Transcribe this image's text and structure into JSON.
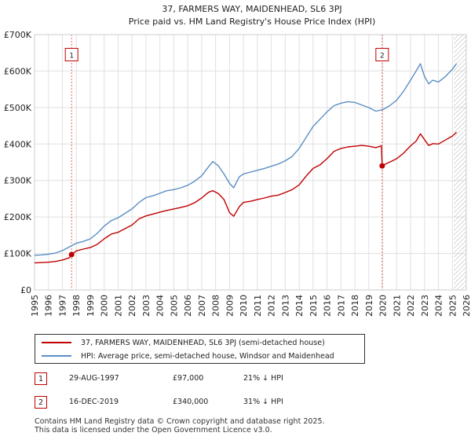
{
  "title_line1": "37, FARMERS WAY, MAIDENHEAD, SL6 3PJ",
  "title_line2": "Price paid vs. HM Land Registry's House Price Index (HPI)",
  "colors": {
    "property": "#c00000",
    "hpi": "#5b8ec4",
    "grid": "#e0e0e0",
    "marker_line": "#e06666"
  },
  "legend": {
    "property_label": "37, FARMERS WAY, MAIDENHEAD, SL6 3PJ (semi-detached house)",
    "hpi_label": "HPI: Average price, semi-detached house, Windsor and Maidenhead"
  },
  "annotations": [
    {
      "id": "1",
      "date": "29-AUG-1997",
      "price": "£97,000",
      "hpi_diff": "21% ↓ HPI"
    },
    {
      "id": "2",
      "date": "16-DEC-2019",
      "price": "£340,000",
      "hpi_diff": "31% ↓ HPI"
    }
  ],
  "footer": {
    "line1": "Contains HM Land Registry data © Crown copyright and database right 2025.",
    "line2": "This data is licensed under the Open Government Licence v3.0."
  },
  "chart_data": {
    "type": "line",
    "title": "37, FARMERS WAY, MAIDENHEAD, SL6 3PJ — Price paid vs. HM Land Registry's House Price Index (HPI)",
    "xlabel": "",
    "ylabel": "",
    "xlim": [
      1995,
      2026
    ],
    "ylim": [
      0,
      700000
    ],
    "y_ticks": [
      0,
      100000,
      200000,
      300000,
      400000,
      500000,
      600000,
      700000
    ],
    "y_tick_labels": [
      "£0",
      "£100K",
      "£200K",
      "£300K",
      "£400K",
      "£500K",
      "£600K",
      "£700K"
    ],
    "x_ticks": [
      1995,
      1996,
      1997,
      1998,
      1999,
      2000,
      2001,
      2002,
      2003,
      2004,
      2005,
      2006,
      2007,
      2008,
      2009,
      2010,
      2011,
      2012,
      2013,
      2014,
      2015,
      2016,
      2017,
      2018,
      2019,
      2020,
      2021,
      2022,
      2023,
      2024,
      2025,
      2026
    ],
    "x_tick_labels": [
      "1995",
      "1996",
      "1997",
      "1998",
      "1999",
      "2000",
      "2001",
      "2002",
      "2003",
      "2004",
      "2005",
      "2006",
      "2007",
      "2008",
      "2009",
      "2010",
      "2011",
      "2012",
      "2013",
      "2014",
      "2015",
      "2016",
      "2017",
      "2018",
      "2019",
      "2020",
      "2021",
      "2022",
      "2023",
      "2024",
      "2025",
      "2026"
    ],
    "future_hatch_start": 2025.1,
    "series": [
      {
        "name": "37, FARMERS WAY, MAIDENHEAD, SL6 3PJ (semi-detached house)",
        "color": "#c00000",
        "x": [
          1995.0,
          1995.5,
          1996.0,
          1996.5,
          1997.0,
          1997.5,
          1997.66,
          1998.0,
          1998.5,
          1999.0,
          1999.5,
          2000.0,
          2000.5,
          2001.0,
          2001.5,
          2002.0,
          2002.5,
          2003.0,
          2003.5,
          2004.0,
          2004.5,
          2005.0,
          2005.5,
          2006.0,
          2006.5,
          2007.0,
          2007.5,
          2007.8,
          2008.2,
          2008.6,
          2009.0,
          2009.3,
          2009.7,
          2010.0,
          2010.5,
          2011.0,
          2011.5,
          2012.0,
          2012.5,
          2013.0,
          2013.5,
          2014.0,
          2014.5,
          2015.0,
          2015.5,
          2016.0,
          2016.5,
          2017.0,
          2017.5,
          2018.0,
          2018.5,
          2019.0,
          2019.5,
          2019.9,
          2019.96,
          2020.3,
          2020.7,
          2021.0,
          2021.5,
          2022.0,
          2022.4,
          2022.7,
          2023.0,
          2023.3,
          2023.6,
          2024.0,
          2024.5,
          2025.0,
          2025.3
        ],
        "values": [
          74000,
          75000,
          76000,
          78000,
          82000,
          88000,
          97000,
          107000,
          112000,
          116000,
          125000,
          140000,
          153000,
          158000,
          168000,
          178000,
          195000,
          203000,
          208000,
          213000,
          218000,
          222000,
          226000,
          231000,
          239000,
          252000,
          268000,
          272000,
          264000,
          248000,
          212000,
          202000,
          228000,
          240000,
          243000,
          248000,
          252000,
          257000,
          260000,
          267000,
          275000,
          288000,
          312000,
          333000,
          343000,
          360000,
          380000,
          388000,
          392000,
          394000,
          396000,
          394000,
          390000,
          395000,
          340000,
          347000,
          354000,
          360000,
          375000,
          395000,
          408000,
          428000,
          412000,
          396000,
          401000,
          400000,
          411000,
          422000,
          432000
        ]
      },
      {
        "name": "HPI: Average price, semi-detached house, Windsor and Maidenhead",
        "color": "#5b8ec4",
        "x": [
          1995.0,
          1995.5,
          1996.0,
          1996.5,
          1997.0,
          1997.5,
          1998.0,
          1998.5,
          1999.0,
          1999.5,
          2000.0,
          2000.5,
          2001.0,
          2001.5,
          2002.0,
          2002.5,
          2003.0,
          2003.5,
          2004.0,
          2004.5,
          2005.0,
          2005.5,
          2006.0,
          2006.5,
          2007.0,
          2007.5,
          2007.8,
          2008.2,
          2008.6,
          2009.0,
          2009.3,
          2009.7,
          2010.0,
          2010.5,
          2011.0,
          2011.5,
          2012.0,
          2012.5,
          2013.0,
          2013.5,
          2014.0,
          2014.5,
          2015.0,
          2015.5,
          2016.0,
          2016.5,
          2017.0,
          2017.5,
          2018.0,
          2018.5,
          2019.0,
          2019.5,
          2020.0,
          2020.5,
          2021.0,
          2021.5,
          2022.0,
          2022.4,
          2022.7,
          2023.0,
          2023.3,
          2023.6,
          2024.0,
          2024.5,
          2025.0,
          2025.3
        ],
        "values": [
          95000,
          96000,
          98000,
          101000,
          108000,
          118000,
          128000,
          133000,
          140000,
          155000,
          175000,
          190000,
          198000,
          210000,
          222000,
          240000,
          253000,
          258000,
          265000,
          272000,
          275000,
          280000,
          287000,
          298000,
          313000,
          338000,
          352000,
          340000,
          318000,
          292000,
          280000,
          310000,
          318000,
          323000,
          328000,
          333000,
          339000,
          345000,
          354000,
          366000,
          388000,
          418000,
          448000,
          468000,
          488000,
          505000,
          512000,
          516000,
          514000,
          507000,
          500000,
          490000,
          494000,
          505000,
          520000,
          545000,
          575000,
          600000,
          620000,
          585000,
          565000,
          575000,
          570000,
          585000,
          605000,
          620000
        ]
      }
    ],
    "annotations": [
      {
        "label": "1",
        "x": 1997.66,
        "y": 97000,
        "box_y": 645000
      },
      {
        "label": "2",
        "x": 2019.96,
        "y": 340000,
        "box_y": 645000
      }
    ]
  }
}
